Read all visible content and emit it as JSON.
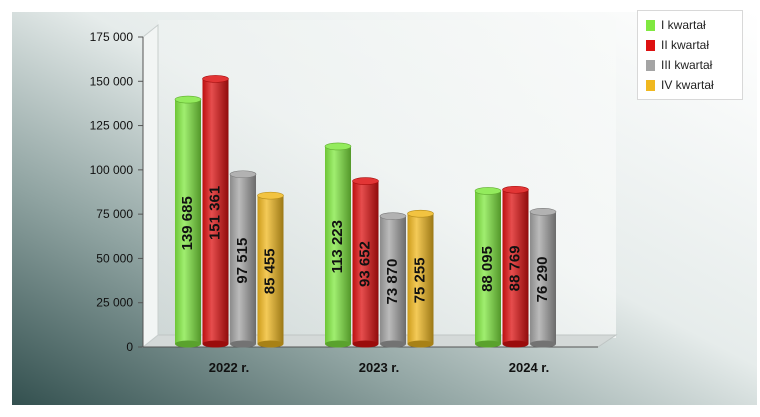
{
  "chart_data": {
    "type": "bar",
    "categories": [
      "2022 r.",
      "2023 r.",
      "2024 r."
    ],
    "series": [
      {
        "name": "I kwartał",
        "color": "#80e840",
        "values": [
          139685,
          113223,
          88095
        ]
      },
      {
        "name": "II kwartał",
        "color": "#dd1111",
        "values": [
          151361,
          93652,
          88769
        ]
      },
      {
        "name": "III kwartał",
        "color": "#a4a4a4",
        "values": [
          97515,
          73870,
          76290
        ]
      },
      {
        "name": "IV kwartał",
        "color": "#f0b820",
        "values": [
          85455,
          75255,
          null
        ]
      }
    ],
    "data_labels": [
      [
        "139 685",
        "151 361",
        "97 515",
        "85 455"
      ],
      [
        "113 223",
        "93 652",
        "73 870",
        "75 255"
      ],
      [
        "88 095",
        "88 769",
        "76 290",
        null
      ]
    ],
    "ylim": [
      0,
      175000
    ],
    "yticks": [
      0,
      25000,
      50000,
      75000,
      100000,
      125000,
      150000,
      175000
    ],
    "ytick_labels": [
      "0",
      "25 000",
      "50 000",
      "75 000",
      "100 000",
      "125 000",
      "150 000",
      "175 000"
    ],
    "title": "",
    "xlabel": "",
    "ylabel": "",
    "legend_position": "top-right",
    "grid": false
  }
}
